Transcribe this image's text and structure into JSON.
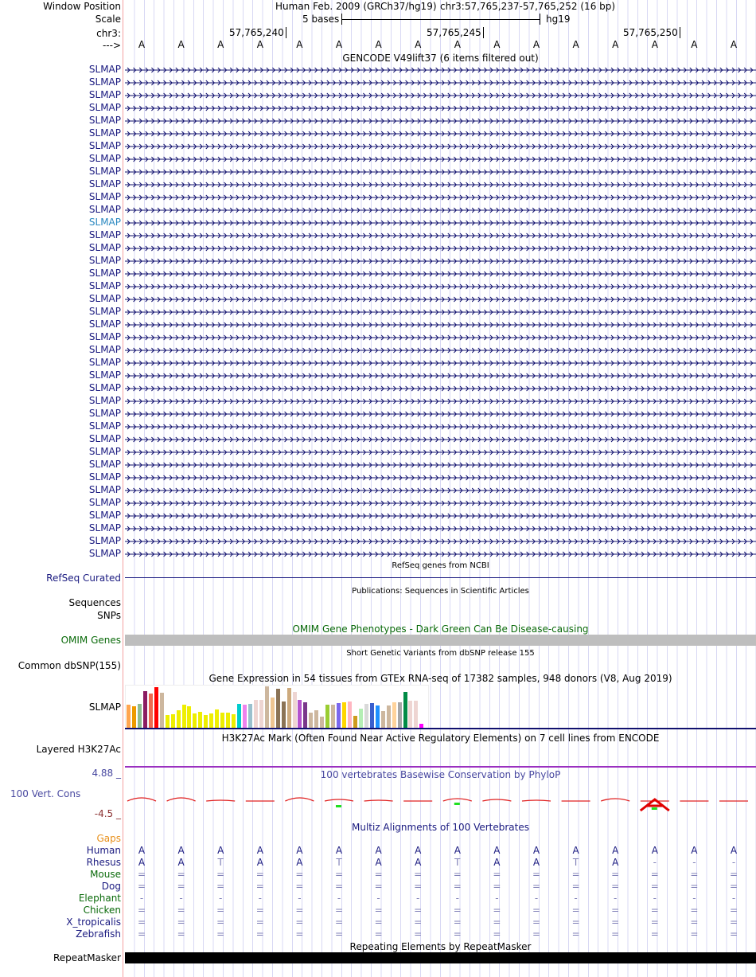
{
  "header": {
    "window_position_label": "Window Position",
    "scale_label": "Scale",
    "chrom_label": "chr3:",
    "strand_label": "--->",
    "assembly": "Human Feb. 2009 (GRCh37/hg19)",
    "position": "chr3:57,765,237-57,765,252 (16 bp)",
    "scale_text": "5 bases",
    "scale_db": "hg19",
    "ticks": [
      "57,765,240",
      "57,765,245",
      "57,765,250"
    ]
  },
  "bases": [
    "A",
    "A",
    "A",
    "A",
    "A",
    "A",
    "A",
    "A",
    "A",
    "A",
    "A",
    "A",
    "A",
    "A",
    "A",
    "A"
  ],
  "gencode": {
    "title": "GENCODE V49lift37 (6 items filtered out)",
    "gene_label": "SLMAP",
    "count": 39,
    "highlight_index": 12
  },
  "refseq": {
    "title": "RefSeq genes from NCBI",
    "label": "RefSeq Curated"
  },
  "publications": {
    "title": "Publications: Sequences in Scientific Articles",
    "label1": "Sequences",
    "label2": "SNPs"
  },
  "omim": {
    "title": "OMIM Gene Phenotypes - Dark Green Can Be Disease-causing",
    "label": "OMIM Genes"
  },
  "dbsnp": {
    "title": "Short Genetic Variants from dbSNP release 155",
    "label": "Common dbSNP(155)"
  },
  "gtex": {
    "title": "Gene Expression in 54 tissues from GTEx RNA-seq of 17382 samples, 948 donors (V8, Aug 2019)",
    "label": "SLMAP",
    "values": [
      30,
      28,
      31,
      47,
      44,
      52,
      45,
      17,
      18,
      23,
      30,
      28,
      19,
      21,
      17,
      19,
      24,
      20,
      20,
      18,
      31,
      30,
      31,
      36,
      36,
      53,
      39,
      50,
      34,
      51,
      46,
      36,
      33,
      20,
      23,
      15,
      30,
      30,
      32,
      33,
      34,
      16,
      25,
      31,
      32,
      29,
      22,
      29,
      33,
      33,
      46,
      35,
      35,
      6
    ],
    "colors": [
      "#ffa54f",
      "#ee9a00",
      "#8fbc8f",
      "#8b1c62",
      "#ee6a50",
      "#ff0000",
      "#cdb79e",
      "#eeee00",
      "#eeee00",
      "#eeee00",
      "#eeee00",
      "#eeee00",
      "#eeee00",
      "#eeee00",
      "#eeee00",
      "#eeee00",
      "#eeee00",
      "#eeee00",
      "#eeee00",
      "#eeee00",
      "#00cdcd",
      "#ee82ee",
      "#9ac0cd",
      "#eed5d2",
      "#eed5d2",
      "#cdb79e",
      "#eec591",
      "#8b7355",
      "#8b7355",
      "#cdaa7d",
      "#eed5d2",
      "#b452cd",
      "#7a378b",
      "#cdb79e",
      "#cdb79e",
      "#cdb79e",
      "#9acd32",
      "#cdb79e",
      "#7b68ee",
      "#ffd700",
      "#ffb6c1",
      "#cd9b1d",
      "#b4eeb4",
      "#d9d9d9",
      "#3a5fcd",
      "#1e90ff",
      "#cdb79e",
      "#cdb79e",
      "#ffd39b",
      "#a6a6a6",
      "#008b45",
      "#eed5d2",
      "#eed5d2",
      "#ff00ff"
    ]
  },
  "h3k27ac": {
    "title": "H3K27Ac Mark (Often Found Near Active Regulatory Elements) on 7 cell lines from ENCODE",
    "label": "Layered H3K27Ac"
  },
  "phylop": {
    "title": "100 vertebrates Basewise Conservation by PhyloP",
    "label": "100 Vert. Cons",
    "max": "4.88 _",
    "min": "-4.5 _"
  },
  "multiz": {
    "title": "Multiz Alignments of 100 Vertebrates",
    "gaps_label": "Gaps",
    "species": [
      {
        "name": "Human",
        "color": "#1a1a80",
        "bases": [
          "A",
          "A",
          "A",
          "A",
          "A",
          "A",
          "A",
          "A",
          "A",
          "A",
          "A",
          "A",
          "A",
          "A",
          "A",
          "A"
        ]
      },
      {
        "name": "Rhesus",
        "color": "#1a1a80",
        "bases": [
          "A",
          "A",
          "T",
          "A",
          "A",
          "T",
          "A",
          "A",
          "T",
          "A",
          "A",
          "T",
          "A",
          "-",
          "-",
          "-"
        ]
      },
      {
        "name": "Mouse",
        "color": "#0a6a0a",
        "bases": [
          "=",
          "=",
          "=",
          "=",
          "=",
          "=",
          "=",
          "=",
          "=",
          "=",
          "=",
          "=",
          "=",
          "=",
          "=",
          "="
        ]
      },
      {
        "name": "Dog",
        "color": "#1a1a80",
        "bases": [
          "=",
          "=",
          "=",
          "=",
          "=",
          "=",
          "=",
          "=",
          "=",
          "=",
          "=",
          "=",
          "=",
          "=",
          "=",
          "="
        ]
      },
      {
        "name": "Elephant",
        "color": "#0a6a0a",
        "bases": [
          "-",
          "-",
          "-",
          "-",
          "-",
          "-",
          "-",
          "-",
          "-",
          "-",
          "-",
          "-",
          "-",
          "-",
          "-",
          "-"
        ]
      },
      {
        "name": "Chicken",
        "color": "#0a6a0a",
        "bases": [
          "=",
          "=",
          "=",
          "=",
          "=",
          "=",
          "=",
          "=",
          "=",
          "=",
          "=",
          "=",
          "=",
          "=",
          "=",
          "="
        ]
      },
      {
        "name": "X_tropicalis",
        "color": "#1a1a80",
        "bases": [
          "=",
          "=",
          "=",
          "=",
          "=",
          "=",
          "=",
          "=",
          "=",
          "=",
          "=",
          "=",
          "=",
          "=",
          "=",
          "="
        ]
      },
      {
        "name": "Zebrafish",
        "color": "#1a1a80",
        "bases": [
          "=",
          "=",
          "=",
          "=",
          "=",
          "=",
          "=",
          "=",
          "=",
          "=",
          "=",
          "=",
          "=",
          "=",
          "=",
          "="
        ]
      }
    ]
  },
  "repeatmasker": {
    "title": "Repeating Elements by RepeatMasker",
    "label": "RepeatMasker"
  }
}
